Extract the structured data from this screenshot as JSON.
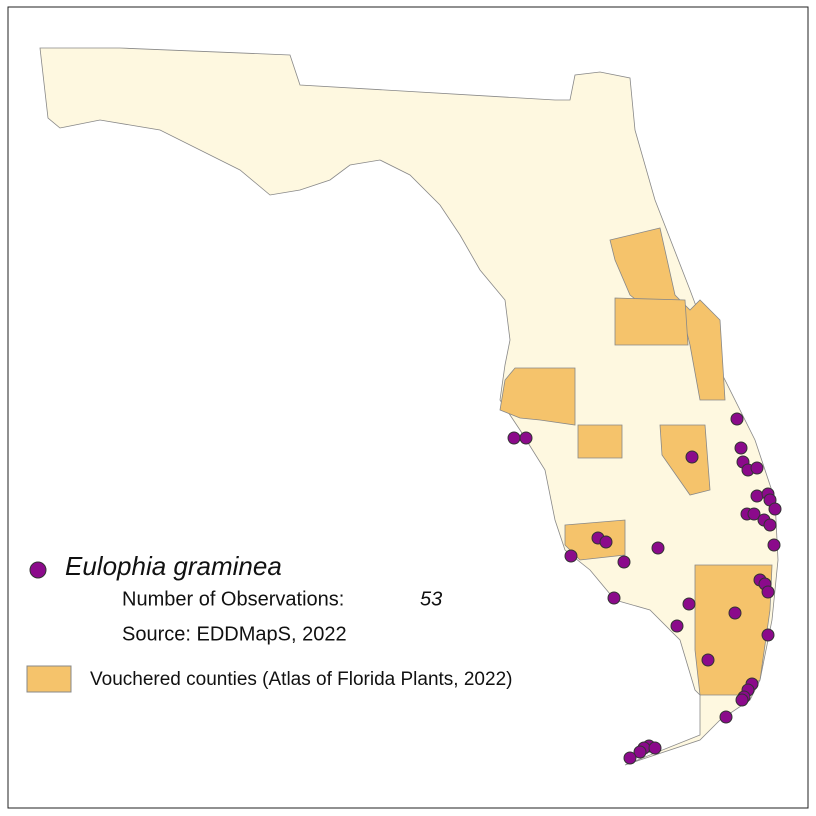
{
  "legend": {
    "species": "Eulophia graminea",
    "observations_label": "Number of Observations:",
    "observations_count": "53",
    "source": "Source: EDDMapS, 2022",
    "vouchered": "Vouchered counties (Atlas of Florida Plants, 2022)"
  }
}
